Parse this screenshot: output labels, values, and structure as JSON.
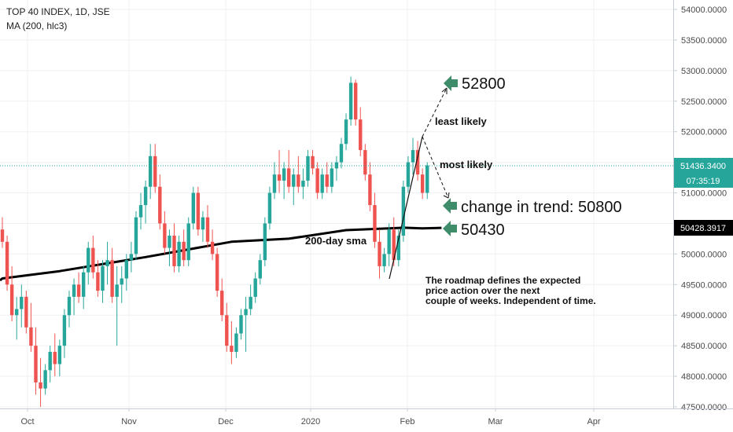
{
  "legend": {
    "symbol_line": "TOP 40 INDEX, 1D, JSE",
    "indicator_line": "MA (200, hlc3)"
  },
  "colors": {
    "up": "#26a69a",
    "down": "#ef5350",
    "ma": "#000000",
    "grid": "#eef0f3",
    "price_tag": "#26a69a",
    "arrow": "#3f8c6a",
    "ma_tag": "#000000"
  },
  "chart_data": {
    "type": "candlestick",
    "title": "TOP 40 INDEX, 1D, JSE",
    "y_ticks": [
      "47500.0000",
      "48000.0000",
      "48500.0000",
      "49000.0000",
      "49500.0000",
      "50000.0000",
      "50500.0000",
      "51000.0000",
      "51500.0000",
      "52000.0000",
      "52500.0000",
      "53000.0000",
      "53500.0000",
      "54000.0000"
    ],
    "ylim": [
      47450,
      54150
    ],
    "x_ticks": [
      "Oct",
      "Nov",
      "Dec",
      "2020",
      "Feb",
      "Mar",
      "Apr"
    ],
    "grid": true,
    "last_price": "51436.3400",
    "countdown": "07:35:19",
    "ma_value": "50428.3917",
    "candles": [
      [
        50400,
        50600,
        50100,
        50200
      ],
      [
        50200,
        50300,
        49400,
        49500
      ],
      [
        49500,
        49800,
        48900,
        49000
      ],
      [
        49000,
        49300,
        48600,
        49100
      ],
      [
        49100,
        49500,
        48800,
        49300
      ],
      [
        49300,
        49400,
        48700,
        48800
      ],
      [
        48800,
        49200,
        48400,
        48500
      ],
      [
        48500,
        48800,
        47700,
        47900
      ],
      [
        47900,
        48300,
        47500,
        47800
      ],
      [
        47800,
        48200,
        47700,
        48100
      ],
      [
        48100,
        48500,
        47900,
        48400
      ],
      [
        48400,
        48700,
        48000,
        48200
      ],
      [
        48200,
        48600,
        48000,
        48500
      ],
      [
        48500,
        49100,
        48300,
        49000
      ],
      [
        49000,
        49400,
        48800,
        49300
      ],
      [
        49300,
        49600,
        49000,
        49500
      ],
      [
        49500,
        49700,
        49200,
        49300
      ],
      [
        49300,
        49800,
        49100,
        49700
      ],
      [
        49700,
        50200,
        49500,
        50100
      ],
      [
        50100,
        50300,
        49600,
        49700
      ],
      [
        49700,
        49900,
        49300,
        49400
      ],
      [
        49400,
        49900,
        49200,
        49800
      ],
      [
        49800,
        50200,
        49500,
        49900
      ],
      [
        49900,
        50100,
        49200,
        49300
      ],
      [
        49300,
        49800,
        48500,
        49500
      ],
      [
        49500,
        49800,
        49200,
        49600
      ],
      [
        49600,
        50000,
        49400,
        49900
      ],
      [
        49900,
        50200,
        49700,
        50000
      ],
      [
        50000,
        50700,
        49900,
        50600
      ],
      [
        50600,
        51000,
        50400,
        50800
      ],
      [
        50800,
        51200,
        50500,
        51100
      ],
      [
        51100,
        51800,
        50900,
        51600
      ],
      [
        51600,
        51800,
        51000,
        51100
      ],
      [
        51100,
        51300,
        50400,
        50500
      ],
      [
        50500,
        50700,
        50000,
        50100
      ],
      [
        50100,
        50400,
        49800,
        50300
      ],
      [
        50300,
        50500,
        49700,
        49800
      ],
      [
        49800,
        50300,
        49700,
        50200
      ],
      [
        50200,
        50400,
        49800,
        49900
      ],
      [
        49900,
        50600,
        49800,
        50500
      ],
      [
        50500,
        51100,
        50400,
        51000
      ],
      [
        51000,
        51100,
        50300,
        50400
      ],
      [
        50400,
        50700,
        50200,
        50600
      ],
      [
        50600,
        50800,
        50100,
        50200
      ],
      [
        50200,
        50400,
        49900,
        50000
      ],
      [
        50000,
        50100,
        49300,
        49400
      ],
      [
        49400,
        49600,
        48900,
        49000
      ],
      [
        49000,
        49200,
        48400,
        48500
      ],
      [
        48500,
        48900,
        48200,
        48400
      ],
      [
        48400,
        48800,
        48300,
        48700
      ],
      [
        48700,
        49100,
        48600,
        49000
      ],
      [
        49000,
        49300,
        48400,
        49100
      ],
      [
        49100,
        49500,
        49000,
        49300
      ],
      [
        49300,
        49700,
        49200,
        49600
      ],
      [
        49600,
        50000,
        49500,
        49900
      ],
      [
        49900,
        50600,
        49800,
        50500
      ],
      [
        50500,
        51100,
        50400,
        51000
      ],
      [
        51000,
        51500,
        50900,
        51300
      ],
      [
        51300,
        51700,
        51000,
        51200
      ],
      [
        51200,
        51500,
        50900,
        51400
      ],
      [
        51400,
        51700,
        51000,
        51100
      ],
      [
        51100,
        51400,
        50800,
        51300
      ],
      [
        51300,
        51600,
        51000,
        51100
      ],
      [
        51100,
        51400,
        50900,
        51200
      ],
      [
        51200,
        51700,
        51100,
        51600
      ],
      [
        51600,
        51700,
        51300,
        51400
      ],
      [
        51400,
        51500,
        50900,
        51000
      ],
      [
        51000,
        51400,
        50900,
        51300
      ],
      [
        51300,
        51500,
        51000,
        51100
      ],
      [
        51100,
        51500,
        51000,
        51400
      ],
      [
        51400,
        51600,
        51200,
        51500
      ],
      [
        51500,
        51900,
        51400,
        51800
      ],
      [
        51800,
        52300,
        51700,
        52200
      ],
      [
        52200,
        52900,
        52100,
        52800
      ],
      [
        52800,
        52850,
        52100,
        52200
      ],
      [
        52200,
        52400,
        51600,
        51700
      ],
      [
        51700,
        51800,
        51200,
        51300
      ],
      [
        51300,
        51500,
        50700,
        50800
      ],
      [
        50800,
        51000,
        50100,
        50200
      ],
      [
        50200,
        50400,
        49600,
        49800
      ],
      [
        49800,
        50100,
        49700,
        50000
      ],
      [
        50000,
        50500,
        49800,
        50400
      ],
      [
        50400,
        50600,
        49800,
        49900
      ],
      [
        49900,
        50400,
        49800,
        50300
      ],
      [
        50300,
        51200,
        50200,
        51100
      ],
      [
        51100,
        51600,
        51000,
        51500
      ],
      [
        51500,
        51900,
        51300,
        51700
      ],
      [
        51700,
        51850,
        51200,
        51300
      ],
      [
        51300,
        51400,
        50900,
        51000
      ],
      [
        51000,
        51500,
        50900,
        51450
      ]
    ],
    "ma": [
      [
        0,
        49600
      ],
      [
        12,
        49720
      ],
      [
        30,
        49950
      ],
      [
        48,
        50200
      ],
      [
        60,
        50250
      ],
      [
        72,
        50390
      ],
      [
        84,
        50430
      ],
      [
        88,
        50420
      ],
      [
        92,
        50428
      ]
    ],
    "annotations": {
      "least_likely": "least likely",
      "most_likely": "most likely",
      "sma_label": "200-day sma",
      "target_high": "52800",
      "trend_change": "change in trend: 50800",
      "target_low": "50430",
      "note": "The roadmap defines the expected price action over the next couple of weeks. Independent of time."
    }
  }
}
